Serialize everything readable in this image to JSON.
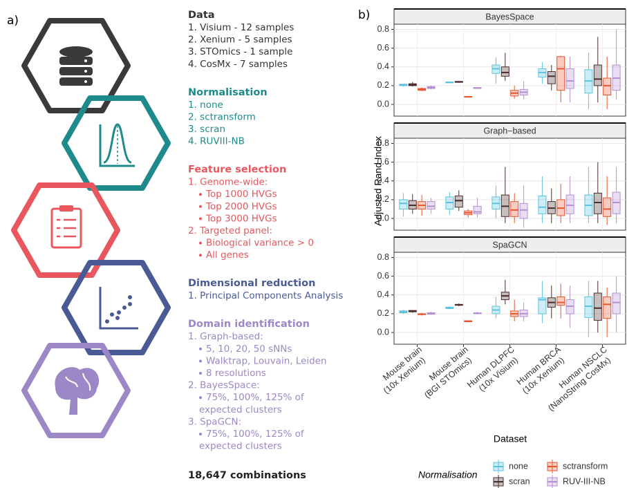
{
  "panel_a": {
    "label": "a)",
    "sections": [
      {
        "title": "Data",
        "color": "#333333",
        "items": [
          {
            "text": "1. Visium - 12 samples"
          },
          {
            "text": "2. Xenium - 5 samples"
          },
          {
            "text": "3. STOmics - 1 sample"
          },
          {
            "text": "4. CosMx - 7 samples"
          }
        ]
      },
      {
        "title": "Normalisation",
        "color": "#1f8a8c",
        "items": [
          {
            "text": "1. none"
          },
          {
            "text": "2. sctransform"
          },
          {
            "text": "3. scran"
          },
          {
            "text": "4. RUVIII-NB"
          }
        ]
      },
      {
        "title": "Feature selection",
        "color": "#e8575e",
        "items": [
          {
            "text": "1. Genome-wide:",
            "sub": [
              "Top 1000 HVGs",
              "Top 2000 HVGs",
              "Top 3000 HVGs"
            ]
          },
          {
            "text": "2. Targeted panel:",
            "sub": [
              "Biological variance > 0",
              "All genes"
            ]
          }
        ]
      },
      {
        "title": "Dimensional reduction",
        "color": "#4a5a95",
        "items": [
          {
            "text": "1. Principal Components Analysis"
          }
        ]
      },
      {
        "title": "Domain identification",
        "color": "#9c88c6",
        "items": [
          {
            "text": "1. Graph-based:",
            "sub": [
              "5, 10, 20, 50 sNNs",
              "Walktrap, Louvain, Leiden",
              "8 resolutions"
            ]
          },
          {
            "text": "2. BayesSpace:",
            "sub": [
              "75%, 100%, 125% of expected clusters"
            ]
          },
          {
            "text": "3. SpaGCN:",
            "sub": [
              "75%, 100%, 125% of expected clusters"
            ]
          }
        ]
      }
    ],
    "summary": "18,647 combinations"
  },
  "chart_data": {
    "type": "boxplot",
    "label": "b)",
    "y_label": "Adjusted Rand Index",
    "x_label": "Dataset",
    "legend_title": "Normalisation",
    "categories": [
      "Mouse brain\n(10x Xenium)",
      "Mouse brain\n(BGI STOmics)",
      "Human DLPFC\n(10x Visium)",
      "Human BRCA\n(10x Xenium)",
      "Human NSCLC\n(NanoString CosMx)"
    ],
    "series": [
      {
        "name": "none",
        "color": "#5bc3e0"
      },
      {
        "name": "scran",
        "color": "#4a2c2c"
      },
      {
        "name": "sctransform",
        "color": "#e8552f"
      },
      {
        "name": "RUV-III-NB",
        "color": "#b58fd2"
      }
    ],
    "ylim": [
      -0.125,
      0.855
    ],
    "yticks": [
      {
        "value": 0,
        "label": "0.0"
      },
      0.2,
      0.4,
      0.6,
      0.8
    ],
    "grid": true,
    "facets": [
      {
        "title": "BayesSpace",
        "boxes": [
          {
            "min": [
              0.19,
              0.23,
              0.22,
              0.22,
              -0.05
            ],
            "q1": [
              0.2,
              0.23,
              0.33,
              0.29,
              0.12
            ],
            "median": [
              0.21,
              0.235,
              0.38,
              0.34,
              0.25
            ],
            "q3": [
              0.215,
              0.24,
              0.42,
              0.38,
              0.37
            ],
            "max": [
              0.22,
              0.24,
              0.5,
              0.45,
              0.55
            ]
          },
          {
            "min": [
              0.19,
              0.23,
              0.25,
              0.15,
              0.02
            ],
            "q1": [
              0.2,
              0.235,
              0.3,
              0.22,
              0.2
            ],
            "median": [
              0.21,
              0.24,
              0.34,
              0.3,
              0.27
            ],
            "q3": [
              0.22,
              0.245,
              0.4,
              0.35,
              0.42
            ],
            "max": [
              0.24,
              0.25,
              0.55,
              0.42,
              0.72
            ]
          },
          {
            "min": [
              0.14,
              0.08,
              0.06,
              0.02,
              -0.05
            ],
            "q1": [
              0.15,
              0.08,
              0.09,
              0.15,
              0.1
            ],
            "median": [
              0.16,
              0.08,
              0.12,
              0.38,
              0.2
            ],
            "q3": [
              0.17,
              0.085,
              0.15,
              0.51,
              0.28
            ],
            "max": [
              0.18,
              0.085,
              0.2,
              0.52,
              0.51
            ]
          },
          {
            "min": [
              0.16,
              0.17,
              0.05,
              0.02,
              0.05
            ],
            "q1": [
              0.17,
              0.17,
              0.1,
              0.17,
              0.15
            ],
            "median": [
              0.18,
              0.175,
              0.13,
              0.25,
              0.28
            ],
            "q3": [
              0.19,
              0.18,
              0.16,
              0.38,
              0.42
            ],
            "max": [
              0.2,
              0.18,
              0.25,
              0.51,
              0.8
            ]
          }
        ]
      },
      {
        "title": "Graph−based",
        "boxes": [
          {
            "min": [
              0.02,
              0.04,
              0.0,
              -0.05,
              -0.05
            ],
            "q1": [
              0.1,
              0.1,
              0.1,
              0.05,
              0.03
            ],
            "median": [
              0.16,
              0.17,
              0.16,
              0.12,
              0.14
            ],
            "q3": [
              0.2,
              0.23,
              0.23,
              0.24,
              0.25
            ],
            "max": [
              0.27,
              0.28,
              0.35,
              0.45,
              0.55
            ]
          },
          {
            "min": [
              0.05,
              0.08,
              -0.05,
              -0.05,
              -0.05
            ],
            "q1": [
              0.1,
              0.12,
              0.02,
              0.05,
              0.05
            ],
            "median": [
              0.14,
              0.19,
              0.13,
              0.11,
              0.17
            ],
            "q3": [
              0.19,
              0.24,
              0.25,
              0.18,
              0.27
            ],
            "max": [
              0.26,
              0.3,
              0.55,
              0.32,
              0.6
            ]
          },
          {
            "min": [
              0.03,
              0.01,
              -0.05,
              -0.05,
              -0.07
            ],
            "q1": [
              0.1,
              0.04,
              0.02,
              0.03,
              0.02
            ],
            "median": [
              0.14,
              0.06,
              0.09,
              0.11,
              0.1
            ],
            "q3": [
              0.18,
              0.08,
              0.18,
              0.2,
              0.22
            ],
            "max": [
              0.25,
              0.1,
              0.27,
              0.37,
              0.45
            ]
          },
          {
            "min": [
              0.05,
              0.01,
              -0.1,
              -0.05,
              -0.05
            ],
            "q1": [
              0.1,
              0.05,
              0.0,
              0.05,
              0.05
            ],
            "median": [
              0.13,
              0.07,
              0.09,
              0.14,
              0.17
            ],
            "q3": [
              0.18,
              0.13,
              0.16,
              0.25,
              0.28
            ],
            "max": [
              0.22,
              0.22,
              0.35,
              0.45,
              0.55
            ]
          }
        ]
      },
      {
        "title": "SpaGCN",
        "boxes": [
          {
            "min": [
              0.2,
              0.25,
              0.15,
              0.1,
              -0.05
            ],
            "q1": [
              0.21,
              0.255,
              0.2,
              0.2,
              0.16
            ],
            "median": [
              0.22,
              0.26,
              0.24,
              0.35,
              0.28
            ],
            "q3": [
              0.23,
              0.27,
              0.28,
              0.37,
              0.38
            ],
            "max": [
              0.24,
              0.28,
              0.38,
              0.55,
              0.55
            ]
          },
          {
            "min": [
              0.21,
              0.28,
              0.3,
              0.15,
              0.0
            ],
            "q1": [
              0.22,
              0.29,
              0.35,
              0.27,
              0.13
            ],
            "median": [
              0.225,
              0.295,
              0.39,
              0.32,
              0.26
            ],
            "q3": [
              0.235,
              0.3,
              0.43,
              0.37,
              0.42
            ],
            "max": [
              0.24,
              0.31,
              0.56,
              0.5,
              0.55
            ]
          },
          {
            "min": [
              0.18,
              0.11,
              0.12,
              0.15,
              -0.05
            ],
            "q1": [
              0.19,
              0.115,
              0.17,
              0.29,
              0.15
            ],
            "median": [
              0.195,
              0.12,
              0.2,
              0.32,
              0.3
            ],
            "q3": [
              0.2,
              0.125,
              0.23,
              0.38,
              0.38
            ],
            "max": [
              0.21,
              0.13,
              0.35,
              0.52,
              0.48
            ]
          },
          {
            "min": [
              0.19,
              0.2,
              0.12,
              0.05,
              0.0
            ],
            "q1": [
              0.195,
              0.2,
              0.17,
              0.2,
              0.2
            ],
            "median": [
              0.2,
              0.205,
              0.2,
              0.28,
              0.32
            ],
            "q3": [
              0.21,
              0.21,
              0.24,
              0.35,
              0.42
            ],
            "max": [
              0.22,
              0.22,
              0.32,
              0.5,
              0.6
            ]
          }
        ]
      }
    ]
  }
}
